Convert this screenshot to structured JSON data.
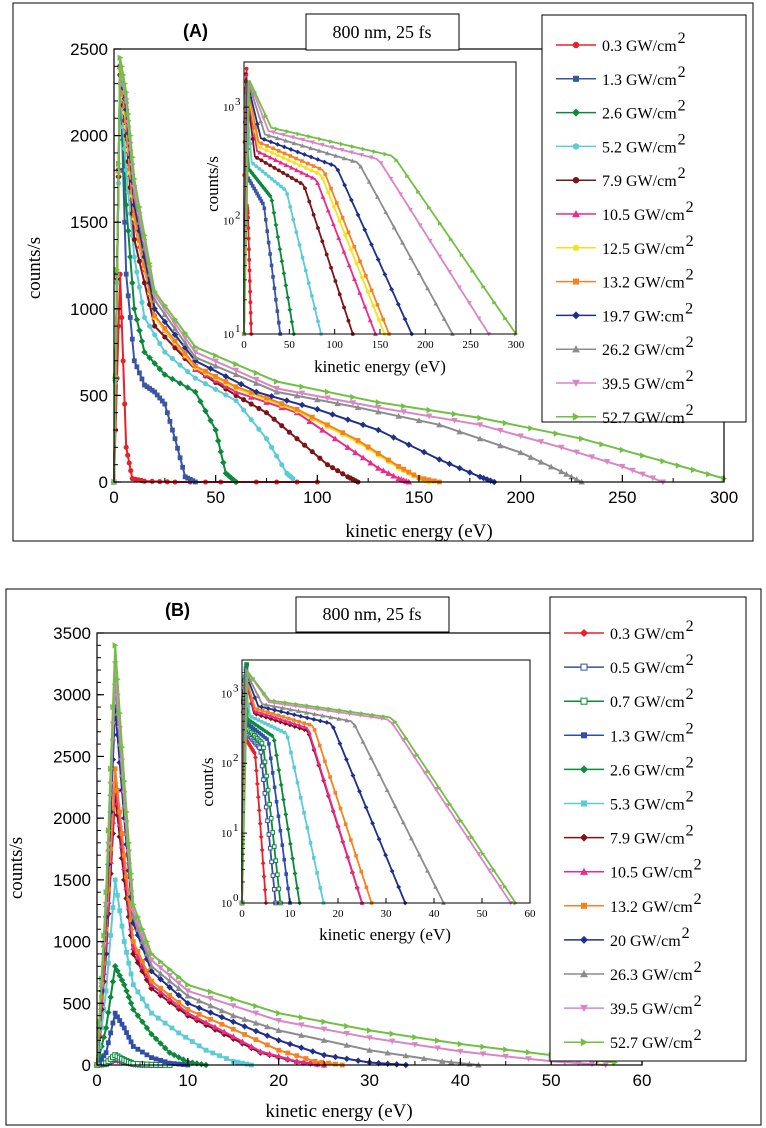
{
  "chart_data": [
    {
      "panel_label": "(A)",
      "condition": "800 nm, 25 fs",
      "type": "line",
      "xlabel": "kinetic energy (eV)",
      "ylabel": "counts/s",
      "xlim": [
        0,
        300
      ],
      "ylim": [
        0,
        2500
      ],
      "xticks": [
        "0",
        "50",
        "100",
        "150",
        "200",
        "250",
        "300"
      ],
      "yticks": [
        "0",
        "500",
        "1000",
        "1500",
        "2000",
        "2500"
      ],
      "legend_position": "right",
      "series": [
        {
          "name": "0.3 GW/cm2",
          "label": "0.3 GW/cm",
          "color": "#e8202a",
          "marker": "circle",
          "x": [
            0,
            3,
            6,
            9,
            15,
            30,
            60,
            100
          ],
          "y": [
            0,
            1200,
            200,
            20,
            5,
            0,
            0,
            0
          ]
        },
        {
          "name": "1.3 GW/cm2",
          "label": "1.3 GW/cm",
          "color": "#3a55a4",
          "marker": "square",
          "x": [
            0,
            3,
            6,
            10,
            15,
            20,
            25,
            30,
            35,
            40
          ],
          "y": [
            0,
            2400,
            1200,
            700,
            560,
            520,
            450,
            250,
            30,
            0
          ]
        },
        {
          "name": "2.6 GW/cm2",
          "label": "2.6 GW/cm",
          "color": "#0b8a3c",
          "marker": "diamond",
          "x": [
            0,
            3,
            6,
            10,
            15,
            25,
            40,
            50,
            55,
            60
          ],
          "y": [
            0,
            2350,
            1600,
            1000,
            750,
            620,
            520,
            300,
            50,
            0
          ]
        },
        {
          "name": "5.2 GW/cm2",
          "label": "5.2 GW/cm",
          "color": "#5ccbd8",
          "marker": "circle",
          "x": [
            0,
            3,
            6,
            10,
            15,
            25,
            40,
            60,
            75,
            85,
            88
          ],
          "y": [
            0,
            2300,
            1800,
            1300,
            950,
            750,
            600,
            470,
            250,
            50,
            20
          ]
        },
        {
          "name": "7.9 GW/cm2",
          "label": "7.9 GW/cm",
          "color": "#7b1416",
          "marker": "circle",
          "x": [
            0,
            3,
            6,
            10,
            20,
            40,
            60,
            75,
            90,
            105,
            115,
            120
          ],
          "y": [
            0,
            2350,
            2000,
            1400,
            900,
            650,
            500,
            400,
            250,
            100,
            30,
            0
          ]
        },
        {
          "name": "10.5 GW/cm2",
          "label": "10.5 GW/cm",
          "color": "#ec2a8c",
          "marker": "triangle-up",
          "x": [
            0,
            3,
            6,
            10,
            20,
            40,
            60,
            90,
            115,
            130,
            140,
            145
          ],
          "y": [
            0,
            2400,
            2050,
            1500,
            950,
            650,
            520,
            400,
            200,
            80,
            20,
            0
          ]
        },
        {
          "name": "12.5 GW/cm2",
          "label": "12.5 GW/cm",
          "color": "#f2e51a",
          "marker": "circle",
          "x": [
            0,
            3,
            6,
            10,
            20,
            40,
            60,
            90,
            120,
            140,
            150,
            155
          ],
          "y": [
            0,
            2380,
            2050,
            1520,
            950,
            660,
            540,
            410,
            230,
            80,
            20,
            0
          ]
        },
        {
          "name": "13.2 GW/cm2",
          "label": "13.2 GW/cm",
          "color": "#f5821f",
          "marker": "square",
          "x": [
            0,
            3,
            6,
            10,
            20,
            40,
            60,
            90,
            120,
            140,
            150,
            160
          ],
          "y": [
            0,
            2400,
            2080,
            1540,
            960,
            670,
            550,
            420,
            240,
            90,
            25,
            0
          ]
        },
        {
          "name": "19.7 GW/cm2",
          "label": "19.7 GW:cm",
          "color": "#1e2f8c",
          "marker": "diamond",
          "x": [
            0,
            3,
            6,
            10,
            20,
            40,
            70,
            100,
            130,
            160,
            180,
            187
          ],
          "y": [
            0,
            2400,
            2150,
            1600,
            1000,
            700,
            520,
            420,
            300,
            130,
            30,
            0
          ]
        },
        {
          "name": "26.2 GW/cm2",
          "label": "26.2 GW/cm",
          "color": "#8c8c8c",
          "marker": "triangle-up",
          "x": [
            0,
            3,
            6,
            10,
            20,
            40,
            80,
            120,
            160,
            200,
            220,
            230
          ],
          "y": [
            0,
            2400,
            2200,
            1650,
            1050,
            720,
            520,
            430,
            330,
            170,
            60,
            0
          ]
        },
        {
          "name": "39.5 GW/cm2",
          "label": "39.5 GW/cm",
          "color": "#d986c6",
          "marker": "triangle-down",
          "x": [
            0,
            3,
            6,
            10,
            20,
            40,
            80,
            130,
            180,
            220,
            250,
            270
          ],
          "y": [
            0,
            2380,
            2200,
            1700,
            1080,
            750,
            540,
            430,
            330,
            200,
            90,
            0
          ]
        },
        {
          "name": "52.7 GW/cm2",
          "label": "52.7 GW/cm",
          "color": "#72c043",
          "marker": "triangle-right",
          "x": [
            0,
            3,
            6,
            10,
            20,
            40,
            80,
            130,
            180,
            230,
            270,
            300
          ],
          "y": [
            0,
            2450,
            2250,
            1750,
            1100,
            780,
            580,
            460,
            370,
            250,
            120,
            20
          ]
        }
      ],
      "inset": {
        "type": "line",
        "yscale": "log",
        "xlabel": "kinetic energy (eV)",
        "ylabel": "counts/s",
        "xlim": [
          0,
          300
        ],
        "ylim": [
          10,
          2500
        ],
        "xticks": [
          "0",
          "50",
          "100",
          "150",
          "200",
          "250",
          "300"
        ],
        "ytick_values": [
          10,
          100,
          1000
        ],
        "series_end_x": [
          8,
          40,
          55,
          85,
          120,
          145,
          155,
          160,
          185,
          230,
          270,
          300
        ]
      }
    },
    {
      "panel_label": "(B)",
      "condition": "800 nm, 25 fs",
      "type": "line",
      "xlabel": "kinetic energy (eV)",
      "ylabel": "counts/s",
      "xlim": [
        0,
        60
      ],
      "ylim": [
        0,
        3500
      ],
      "xticks": [
        "0",
        "10",
        "20",
        "30",
        "40",
        "50",
        "60"
      ],
      "yticks": [
        "0",
        "500",
        "1000",
        "1500",
        "2000",
        "2500",
        "3000",
        "3500"
      ],
      "legend_position": "right",
      "series": [
        {
          "name": "0.3 GW/cm2",
          "label": "0.3 GW/cm",
          "color": "#e8202a",
          "marker": "diamond",
          "x": [
            0,
            1,
            2,
            3,
            4,
            5,
            6
          ],
          "y": [
            0,
            5,
            40,
            20,
            5,
            0,
            0
          ]
        },
        {
          "name": "0.5 GW/cm2",
          "label": "0.5 GW/cm",
          "color": "#3a4fa0",
          "marker": "square-open",
          "x": [
            0,
            1,
            2,
            3,
            4,
            5,
            7
          ],
          "y": [
            0,
            10,
            60,
            30,
            8,
            2,
            0
          ]
        },
        {
          "name": "0.7 GW/cm2",
          "label": "0.7 GW/cm",
          "color": "#0b8a3c",
          "marker": "square-open",
          "x": [
            0,
            1,
            2,
            3,
            4,
            6,
            8
          ],
          "y": [
            0,
            15,
            80,
            40,
            10,
            2,
            0
          ]
        },
        {
          "name": "1.3 GW/cm2",
          "label": "1.3 GW/cm",
          "color": "#2f4ea8",
          "marker": "square",
          "x": [
            0,
            1,
            2,
            3,
            4,
            6,
            8,
            10
          ],
          "y": [
            0,
            100,
            420,
            300,
            150,
            60,
            15,
            0
          ]
        },
        {
          "name": "2.6 GW/cm2",
          "label": "2.6 GW/cm",
          "color": "#0b8a3c",
          "marker": "diamond",
          "x": [
            0,
            1,
            2,
            3,
            4,
            6,
            8,
            10,
            12
          ],
          "y": [
            0,
            300,
            800,
            650,
            450,
            250,
            100,
            25,
            0
          ]
        },
        {
          "name": "5.3 GW/cm2",
          "label": "5.3 GW/cm",
          "color": "#5ccbd8",
          "marker": "square",
          "x": [
            0,
            1,
            2,
            3,
            4,
            6,
            9,
            12,
            15,
            17
          ],
          "y": [
            0,
            600,
            1500,
            1000,
            650,
            420,
            260,
            120,
            30,
            0
          ]
        },
        {
          "name": "7.9 GW/cm2",
          "label": "7.9 GW/cm",
          "color": "#7b1416",
          "marker": "diamond",
          "x": [
            0,
            1,
            2,
            3,
            4,
            6,
            10,
            14,
            18,
            22,
            25
          ],
          "y": [
            0,
            900,
            2200,
            1500,
            900,
            620,
            400,
            250,
            100,
            25,
            0
          ]
        },
        {
          "name": "10.5 GW/cm2",
          "label": "10.5 GW/cm",
          "color": "#ec2a8c",
          "marker": "triangle-up",
          "x": [
            0,
            1,
            2,
            3,
            4,
            6,
            10,
            14,
            18,
            22,
            25
          ],
          "y": [
            0,
            1000,
            2300,
            1600,
            950,
            650,
            420,
            270,
            110,
            30,
            0
          ]
        },
        {
          "name": "13.2 GW/cm2",
          "label": "13.2 GW/cm",
          "color": "#f5821f",
          "marker": "square",
          "x": [
            0,
            1,
            2,
            3,
            4,
            6,
            10,
            15,
            20,
            24,
            27
          ],
          "y": [
            0,
            1100,
            2400,
            1700,
            1000,
            680,
            450,
            290,
            120,
            30,
            0
          ]
        },
        {
          "name": "20 GW/cm2",
          "label": "20 GW/cm",
          "color": "#1e2f8c",
          "marker": "diamond",
          "x": [
            0,
            1,
            2,
            3,
            4,
            6,
            10,
            15,
            20,
            25,
            30,
            34
          ],
          "y": [
            0,
            1200,
            2900,
            2000,
            1150,
            760,
            500,
            350,
            200,
            80,
            20,
            0
          ]
        },
        {
          "name": "26.3 GW/cm2",
          "label": "26.3 GW/cm",
          "color": "#8c8c8c",
          "marker": "triangle-up",
          "x": [
            0,
            1,
            2,
            3,
            4,
            6,
            10,
            15,
            20,
            30,
            38,
            42
          ],
          "y": [
            0,
            1300,
            3100,
            2100,
            1200,
            800,
            560,
            400,
            280,
            120,
            30,
            0
          ]
        },
        {
          "name": "39.5 GW/cm2",
          "label": "39.5 GW/cm",
          "color": "#d986c6",
          "marker": "triangle-down",
          "x": [
            0,
            1,
            2,
            3,
            4,
            6,
            10,
            20,
            30,
            40,
            50,
            56
          ],
          "y": [
            0,
            1300,
            3250,
            2200,
            1250,
            850,
            600,
            360,
            220,
            110,
            30,
            0
          ]
        },
        {
          "name": "52.7 GW/cm2",
          "label": "52.7 GW/cm",
          "color": "#72c043",
          "marker": "triangle-right",
          "x": [
            0,
            1,
            2,
            3,
            4,
            6,
            10,
            20,
            30,
            40,
            50,
            57
          ],
          "y": [
            0,
            1400,
            3400,
            2300,
            1300,
            900,
            650,
            420,
            280,
            170,
            80,
            20
          ]
        }
      ],
      "inset": {
        "type": "line",
        "yscale": "log",
        "xlabel": "kinetic energy (eV)",
        "ylabel": "count/s",
        "xlim": [
          0,
          60
        ],
        "ylim": [
          1,
          3000
        ],
        "xticks": [
          "0",
          "10",
          "20",
          "30",
          "40",
          "50",
          "60"
        ],
        "ytick_values": [
          1,
          10,
          100,
          1000
        ],
        "series_end_x": [
          5,
          7,
          8,
          10,
          12,
          17,
          25,
          25,
          27,
          34,
          42,
          56,
          57
        ]
      }
    }
  ]
}
